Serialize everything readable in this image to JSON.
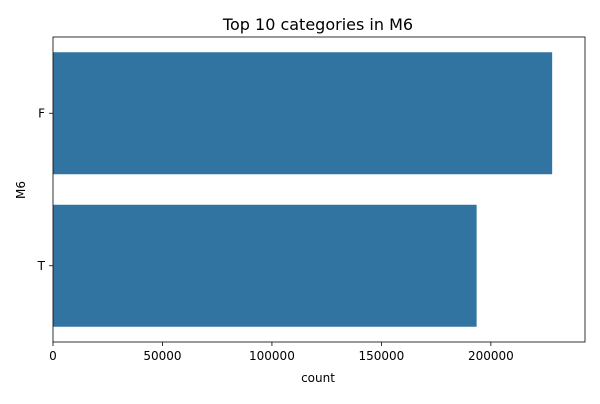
{
  "chart_data": {
    "type": "bar",
    "orientation": "horizontal",
    "title": "Top 10 categories in M6",
    "xlabel": "count",
    "ylabel": "M6",
    "categories": [
      "F",
      "T"
    ],
    "values": [
      228000,
      193500
    ],
    "xlim": [
      0,
      243000
    ],
    "xticks": [
      0,
      50000,
      100000,
      150000,
      200000
    ],
    "xtick_labels": [
      "0",
      "50000",
      "100000",
      "150000",
      "200000"
    ],
    "grid": false,
    "legend": "none",
    "bar_color": "#3274a1"
  }
}
